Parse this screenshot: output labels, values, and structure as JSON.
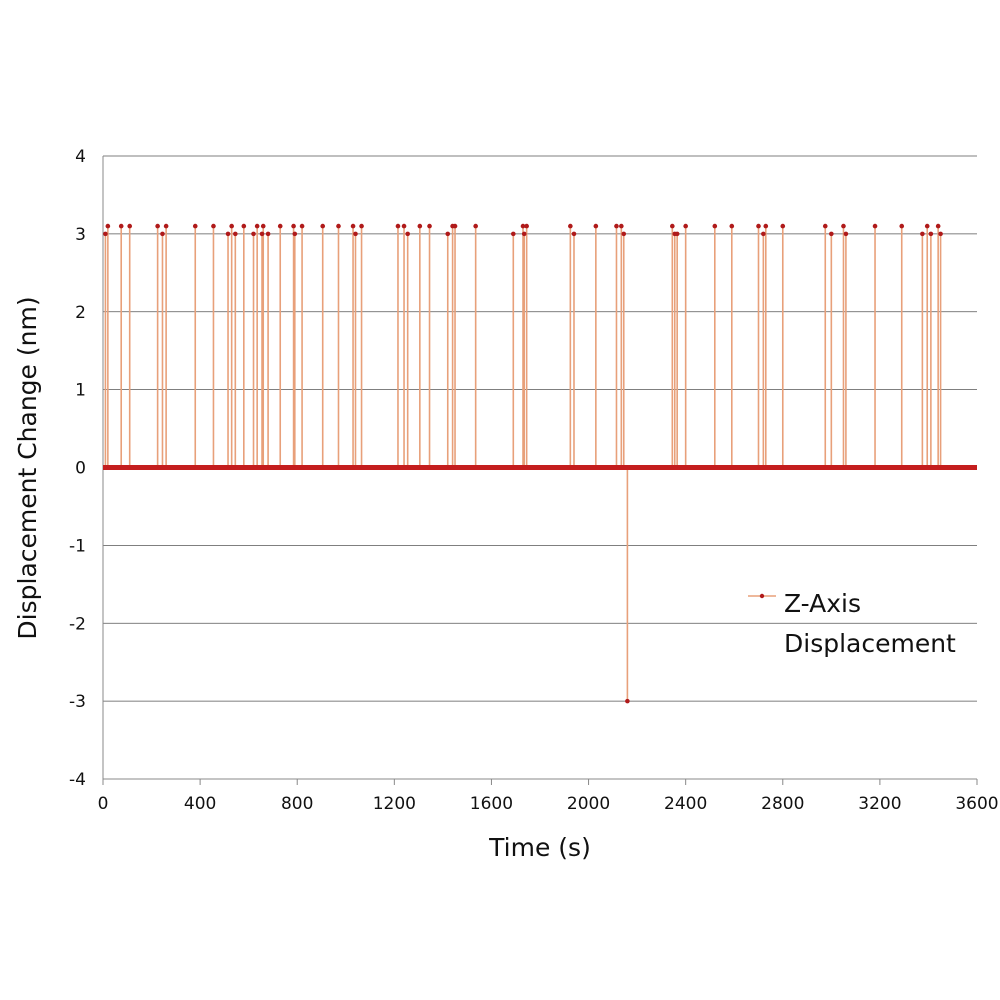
{
  "chart_data": {
    "type": "line",
    "title": "",
    "xlabel": "Time (s)",
    "ylabel": "Displacement Change (nm)",
    "xlim": [
      0,
      3600
    ],
    "ylim": [
      -4,
      4
    ],
    "xticks": [
      0,
      400,
      800,
      1200,
      1600,
      2000,
      2400,
      2800,
      3200,
      3600
    ],
    "yticks": [
      4,
      3,
      2,
      1,
      0,
      -1,
      -2,
      -3,
      -4
    ],
    "grid": "horizontal",
    "legend_position": "right",
    "colors": {
      "line": "#e8a07a",
      "marker": "#b01a1a",
      "baseline": "#c41e1e"
    },
    "series": [
      {
        "name": "Z-Axis Displacement",
        "baseline": 0,
        "spikes": [
          {
            "x": 10,
            "y": 3
          },
          {
            "x": 20,
            "y": 3.1
          },
          {
            "x": 75,
            "y": 3.1
          },
          {
            "x": 110,
            "y": 3.1
          },
          {
            "x": 225,
            "y": 3.1
          },
          {
            "x": 245,
            "y": 3
          },
          {
            "x": 260,
            "y": 3.1
          },
          {
            "x": 380,
            "y": 3.1
          },
          {
            "x": 455,
            "y": 3.1
          },
          {
            "x": 515,
            "y": 3
          },
          {
            "x": 530,
            "y": 3.1
          },
          {
            "x": 545,
            "y": 3
          },
          {
            "x": 580,
            "y": 3.1
          },
          {
            "x": 620,
            "y": 3
          },
          {
            "x": 635,
            "y": 3.1
          },
          {
            "x": 655,
            "y": 3
          },
          {
            "x": 660,
            "y": 3.1
          },
          {
            "x": 680,
            "y": 3
          },
          {
            "x": 730,
            "y": 3.1
          },
          {
            "x": 785,
            "y": 3.1
          },
          {
            "x": 790,
            "y": 3
          },
          {
            "x": 820,
            "y": 3.1
          },
          {
            "x": 905,
            "y": 3.1
          },
          {
            "x": 970,
            "y": 3.1
          },
          {
            "x": 1030,
            "y": 3.1
          },
          {
            "x": 1040,
            "y": 3
          },
          {
            "x": 1065,
            "y": 3.1
          },
          {
            "x": 1215,
            "y": 3.1
          },
          {
            "x": 1240,
            "y": 3.1
          },
          {
            "x": 1255,
            "y": 3
          },
          {
            "x": 1305,
            "y": 3.1
          },
          {
            "x": 1345,
            "y": 3.1
          },
          {
            "x": 1420,
            "y": 3
          },
          {
            "x": 1440,
            "y": 3.1
          },
          {
            "x": 1450,
            "y": 3.1
          },
          {
            "x": 1535,
            "y": 3.1
          },
          {
            "x": 1690,
            "y": 3
          },
          {
            "x": 1730,
            "y": 3.1
          },
          {
            "x": 1735,
            "y": 3
          },
          {
            "x": 1745,
            "y": 3.1
          },
          {
            "x": 1925,
            "y": 3.1
          },
          {
            "x": 1940,
            "y": 3
          },
          {
            "x": 2030,
            "y": 3.1
          },
          {
            "x": 2115,
            "y": 3.1
          },
          {
            "x": 2135,
            "y": 3.1
          },
          {
            "x": 2145,
            "y": 3
          },
          {
            "x": 2160,
            "y": -3
          },
          {
            "x": 2345,
            "y": 3.1
          },
          {
            "x": 2355,
            "y": 3
          },
          {
            "x": 2365,
            "y": 3
          },
          {
            "x": 2400,
            "y": 3.1
          },
          {
            "x": 2520,
            "y": 3.1
          },
          {
            "x": 2590,
            "y": 3.1
          },
          {
            "x": 2700,
            "y": 3.1
          },
          {
            "x": 2720,
            "y": 3
          },
          {
            "x": 2730,
            "y": 3.1
          },
          {
            "x": 2800,
            "y": 3.1
          },
          {
            "x": 2975,
            "y": 3.1
          },
          {
            "x": 3000,
            "y": 3
          },
          {
            "x": 3050,
            "y": 3.1
          },
          {
            "x": 3060,
            "y": 3
          },
          {
            "x": 3180,
            "y": 3.1
          },
          {
            "x": 3290,
            "y": 3.1
          },
          {
            "x": 3375,
            "y": 3
          },
          {
            "x": 3395,
            "y": 3.1
          },
          {
            "x": 3410,
            "y": 3
          },
          {
            "x": 3440,
            "y": 3.1
          },
          {
            "x": 3450,
            "y": 3
          }
        ]
      }
    ]
  }
}
